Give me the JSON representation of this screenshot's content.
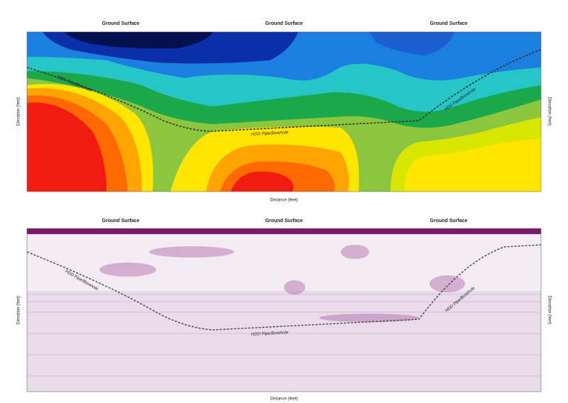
{
  "top_panel": {
    "ground_surface_labels": [
      "Ground Surface",
      "Ground Surface",
      "Ground Surface"
    ],
    "pipe_labels": [
      "HDD Pipe/Borehole",
      "HDD Pipe/Borehole",
      "HDD Pipe/Borehole"
    ],
    "x_axis_title": "Distance (feet)",
    "y_axis_title": "Elevation (feet)",
    "y2_axis_title": "Elevation (feet)"
  },
  "bottom_panel": {
    "ground_surface_labels": [
      "Ground Surface",
      "Ground Surface",
      "Ground Surface"
    ],
    "pipe_labels": [
      "HDD Pipe/Borehole",
      "HDD Pipe/Borehole",
      "HDD Pipe/Borehole"
    ],
    "x_axis_title": "Distance (feet)",
    "y_axis_title": "Elevation (feet)",
    "y2_axis_title": "Elevation (feet)"
  }
}
